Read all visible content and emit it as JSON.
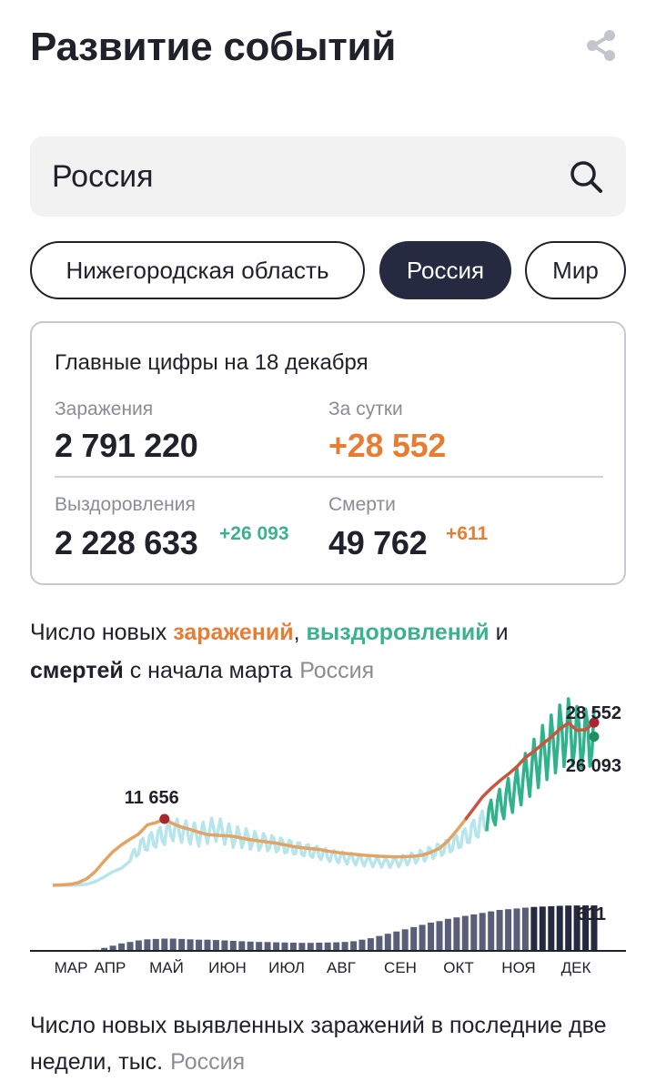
{
  "page": {
    "title": "Развитие событий"
  },
  "icons": {
    "share": "share-icon",
    "search": "search-icon"
  },
  "search": {
    "value": "Россия"
  },
  "chips": [
    {
      "label": "Нижегородская область",
      "active": false
    },
    {
      "label": "Россия",
      "active": true
    },
    {
      "label": "Мир",
      "active": false
    }
  ],
  "summary": {
    "title": "Главные цифры на 18 декабря",
    "infections_label": "Заражения",
    "infections_value": "2 791 220",
    "daily_label": "За сутки",
    "daily_value": "+28 552",
    "recoveries_label": "Выздоровления",
    "recoveries_value": "2 228 633",
    "recoveries_delta": "+26 093",
    "deaths_label": "Смерти",
    "deaths_value": "49 762",
    "deaths_delta": "+611"
  },
  "chart_heading": {
    "part1": "Число новых ",
    "infections_word": "заражений",
    "comma": ", ",
    "recoveries_word": "выздоровлений",
    "and": " и",
    "deaths_word": "смертей",
    "part2": " с начала марта",
    "region": "Россия"
  },
  "colors": {
    "infections": "#e3a364",
    "infections_recent": "#c9553e",
    "recoveries": "#b6e6ec",
    "recoveries_recent": "#2fb38c",
    "deaths": "#262a40",
    "peak_marker": "#a8262f",
    "recover_marker": "#1f8f63"
  },
  "chart_data": {
    "type": "line",
    "x_labels": [
      "МАР",
      "АПР",
      "МАЙ",
      "ИЮН",
      "ИЮЛ",
      "АВГ",
      "СЕН",
      "ОКТ",
      "НОЯ",
      "ДЕК"
    ],
    "series": [
      {
        "name": "заражения",
        "values": [
          40,
          80,
          170,
          500,
          1200,
          2500,
          4300,
          5900,
          7100,
          8100,
          9000,
          10600,
          11000,
          11656,
          10800,
          10200,
          9800,
          9300,
          8900,
          8800,
          8700,
          8600,
          8300,
          8000,
          7800,
          7600,
          7400,
          7100,
          6800,
          6600,
          6450,
          6300,
          6000,
          5800,
          5600,
          5450,
          5300,
          5200,
          5100,
          5050,
          5000,
          5050,
          5100,
          5300,
          5800,
          6500,
          7800,
          9600,
          11500,
          13500,
          15500,
          17000,
          18300,
          19500,
          20800,
          22400,
          23500,
          24800,
          26000,
          27400,
          28500,
          27200,
          27300,
          28552
        ]
      },
      {
        "name": "выздоровления",
        "values": [
          0,
          0,
          30,
          80,
          200,
          700,
          1500,
          2400,
          3000,
          4300,
          6600,
          7500,
          8200,
          8900,
          9800,
          9500,
          9200,
          8800,
          9400,
          9900,
          9200,
          8500,
          8400,
          8000,
          7700,
          7500,
          7200,
          6900,
          6600,
          6300,
          6000,
          5700,
          5300,
          5000,
          4800,
          4600,
          4400,
          4200,
          4100,
          4000,
          4100,
          4400,
          4800,
          5200,
          5700,
          6200,
          6900,
          7600,
          8500,
          9700,
          11000,
          12500,
          14000,
          15500,
          17000,
          19000,
          21000,
          23000,
          24500,
          26000,
          27000,
          26000,
          25800,
          26093
        ]
      },
      {
        "name": "смерти",
        "values": [
          0,
          0,
          0,
          2,
          5,
          15,
          40,
          70,
          100,
          120,
          140,
          155,
          160,
          165,
          165,
          160,
          155,
          150,
          150,
          145,
          140,
          135,
          130,
          125,
          120,
          118,
          115,
          112,
          110,
          108,
          108,
          110,
          112,
          115,
          120,
          130,
          150,
          170,
          200,
          230,
          260,
          290,
          320,
          350,
          380,
          400,
          430,
          450,
          470,
          490,
          510,
          530,
          550,
          560,
          570,
          580,
          590,
          595,
          600,
          605,
          608,
          610,
          611,
          611
        ]
      }
    ],
    "annotations": {
      "infections_peak": "11 656",
      "infections_last": "28 552",
      "recoveries_last": "26 093",
      "deaths_last": "611"
    },
    "ylim": [
      0,
      30000
    ],
    "grid": false,
    "legend": "none"
  },
  "bottom_heading": {
    "text": "Число новых выявленных заражений в последние две недели, тыс.",
    "region": "Россия"
  }
}
